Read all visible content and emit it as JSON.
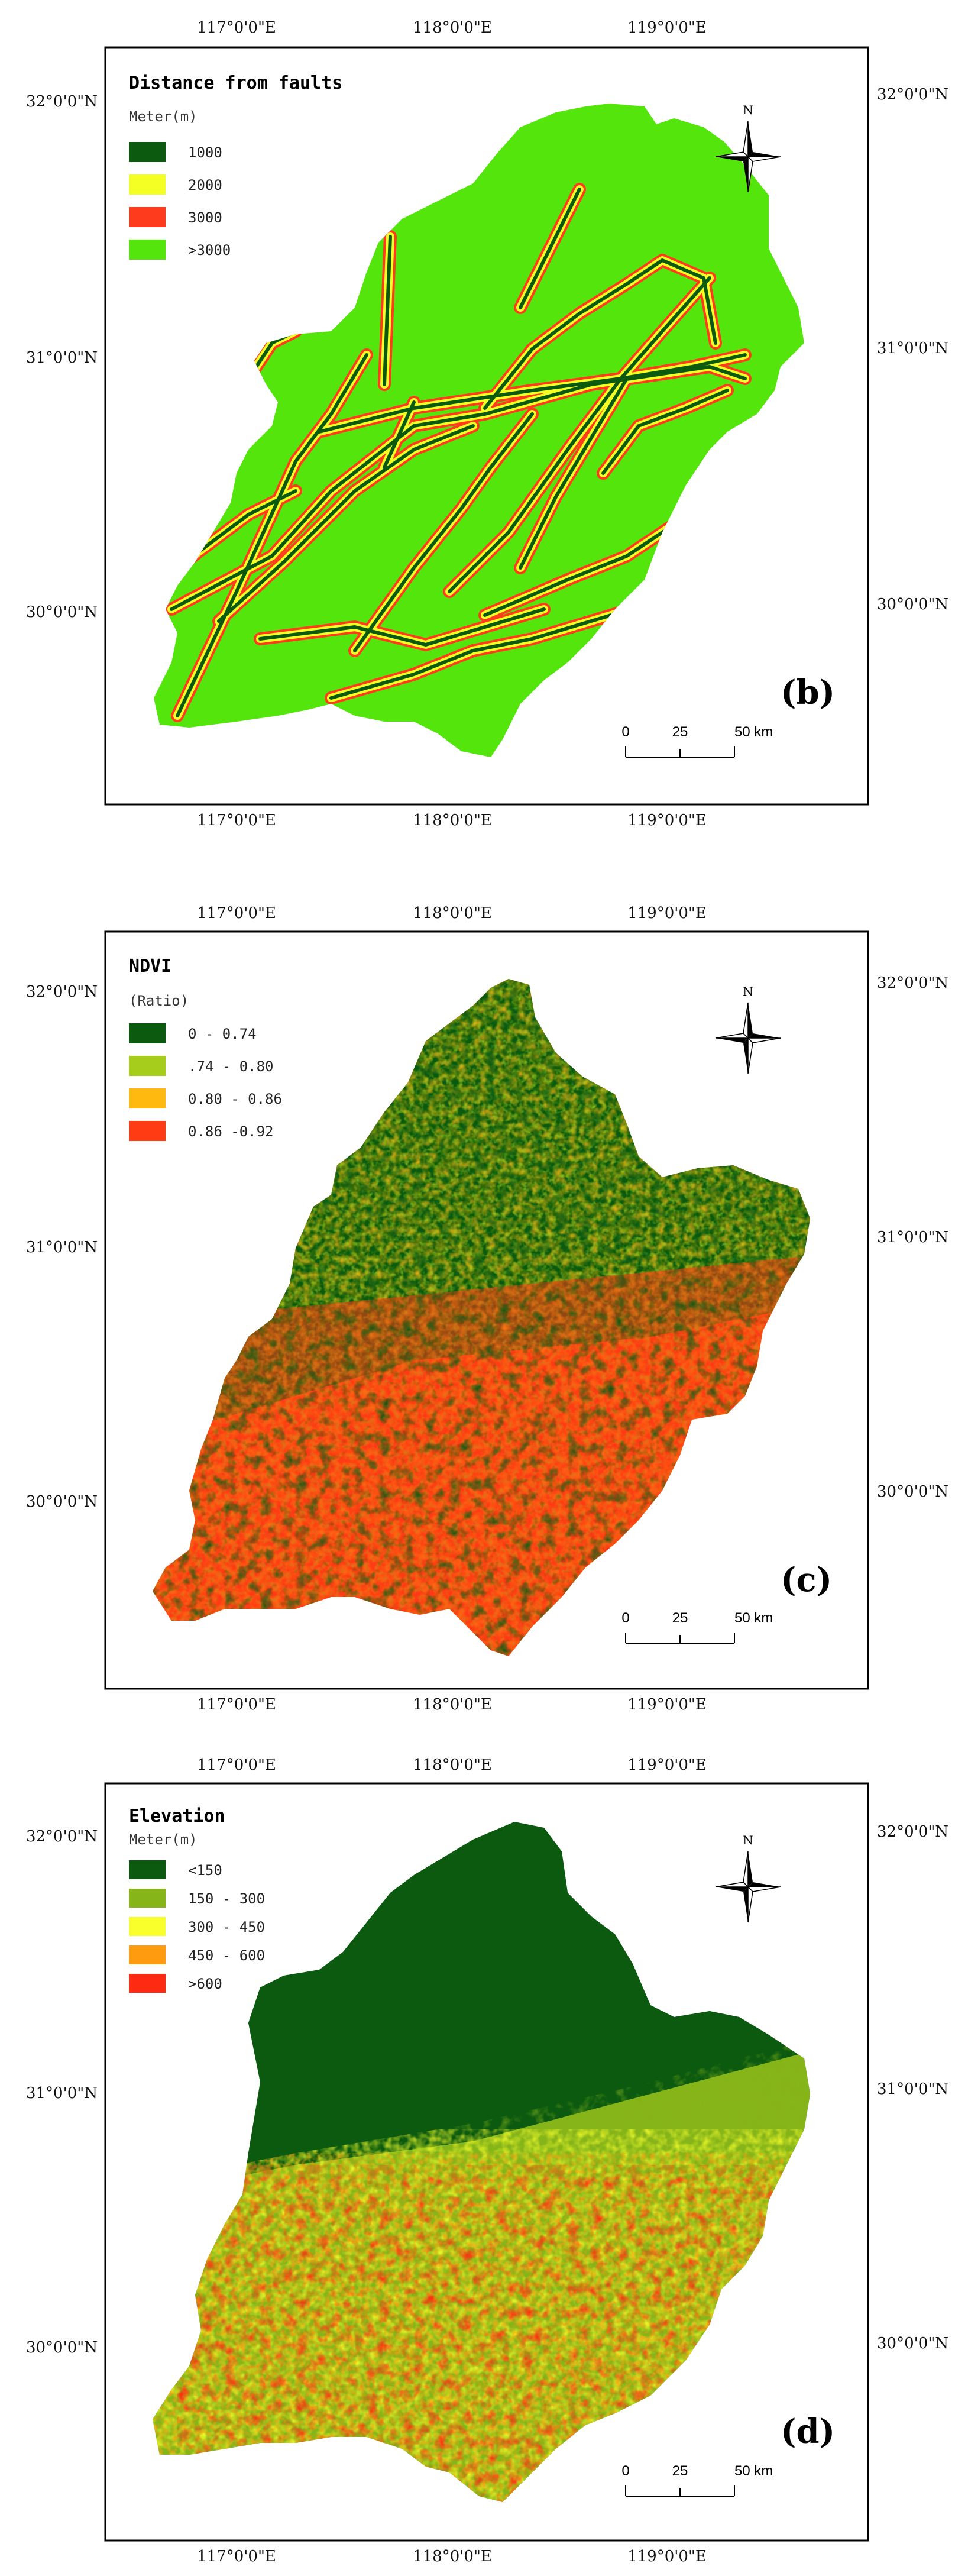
{
  "panels": [
    {
      "id": "b",
      "panel_label": "(b)",
      "legend_title": "Distance from faults",
      "legend_unit": "Meter(m)",
      "legend": [
        {
          "label": "1000",
          "color": "#0b5a10"
        },
        {
          "label": "2000",
          "color": "#f4ff23"
        },
        {
          "label": "3000",
          "color": "#ff3b1e"
        },
        {
          "label": ">3000",
          "color": "#54e60c"
        }
      ],
      "lon_labels": [
        "117°0'0\"E",
        "118°0'0\"E",
        "119°0'0\"E"
      ],
      "lat_labels": [
        "32°0'0\"N",
        "31°0'0\"N",
        "30°0'0\"N"
      ],
      "north": "N",
      "scale_labels": [
        "0",
        "25",
        "50 km"
      ]
    },
    {
      "id": "c",
      "panel_label": "(c)",
      "legend_title": "NDVI",
      "legend_unit": "(Ratio)",
      "legend": [
        {
          "label": "0 - 0.74",
          "color": "#0b5a10"
        },
        {
          "label": ".74 - 0.80",
          "color": "#a6cd1c"
        },
        {
          "label": "0.80 - 0.86",
          "color": "#ffb90f"
        },
        {
          "label": "0.86 -0.92",
          "color": "#ff3b14"
        }
      ],
      "lon_labels": [
        "117°0'0\"E",
        "118°0'0\"E",
        "119°0'0\"E"
      ],
      "lat_labels": [
        "32°0'0\"N",
        "31°0'0\"N",
        "30°0'0\"N"
      ],
      "north": "N",
      "scale_labels": [
        "0",
        "25",
        "50 km"
      ]
    },
    {
      "id": "d",
      "panel_label": "(d)",
      "legend_title": "Elevation",
      "legend_unit": "Meter(m)",
      "legend": [
        {
          "label": "<150",
          "color": "#0b5a10"
        },
        {
          "label": "150 - 300",
          "color": "#86b51a"
        },
        {
          "label": "300 - 450",
          "color": "#f8ff2a"
        },
        {
          "label": "450 - 600",
          "color": "#ff9b0f"
        },
        {
          "label": ">600",
          "color": "#ff2a12"
        }
      ],
      "lon_labels": [
        "117°0'0\"E",
        "118°0'0\"E",
        "119°0'0\"E"
      ],
      "lat_labels": [
        "32°0'0\"N",
        "31°0'0\"N",
        "30°0'0\"N"
      ],
      "north": "N",
      "scale_labels": [
        "0",
        "25",
        "50 km"
      ]
    }
  ]
}
